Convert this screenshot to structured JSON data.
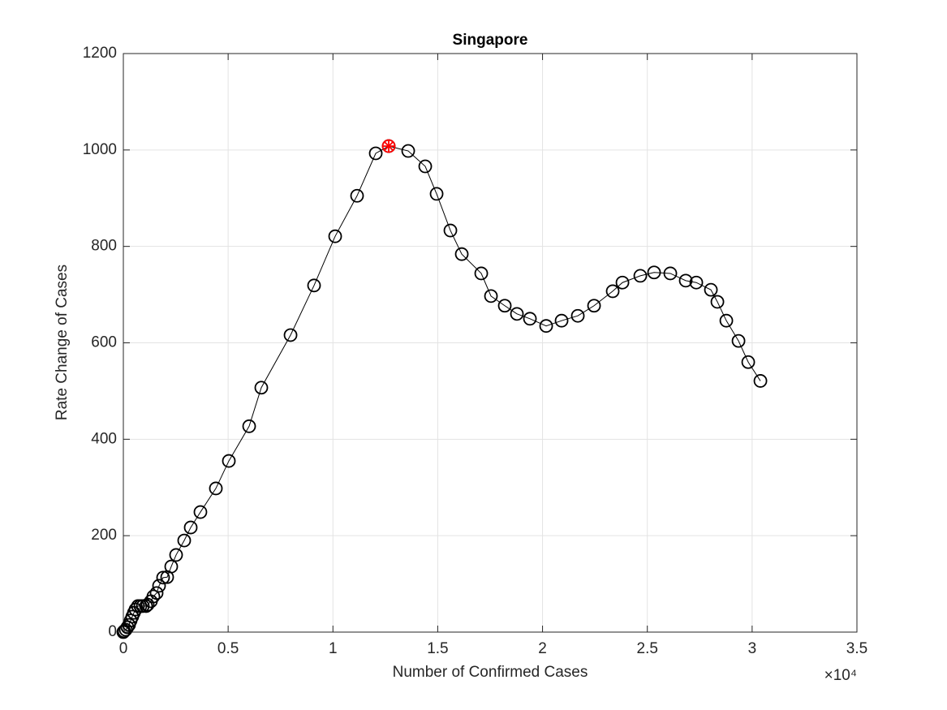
{
  "chart_data": {
    "type": "line",
    "title": "Singapore",
    "x_label": "Number of Confirmed Cases",
    "y_label": "Rate Change of Cases",
    "x_multiplier": "×10⁴",
    "x": [
      0,
      39,
      116,
      194,
      271,
      348,
      426,
      503,
      581,
      697,
      813,
      929,
      1084,
      1162,
      1316,
      1433,
      1588,
      1704,
      1897,
      2091,
      2285,
      2517,
      2904,
      3214,
      3678,
      4414,
      5034,
      6002,
      6582,
      7977,
      9099,
      10106,
      11151,
      12042,
      12661,
      13591,
      14404,
      14946,
      15604,
      16146,
      17076,
      17540,
      18198,
      18779,
      19399,
      20173,
      20909,
      21683,
      22458,
      23348,
      23813,
      24665,
      25323,
      26097,
      26832,
      27336,
      28033,
      28343,
      28769,
      29350,
      29814,
      30395
    ],
    "values": [
      0,
      2,
      5,
      10,
      15,
      24,
      32,
      40,
      47,
      54,
      54,
      54,
      54,
      57,
      64,
      74,
      81,
      96,
      113,
      114,
      136,
      160,
      190,
      217,
      249,
      298,
      355,
      427,
      507,
      616,
      719,
      821,
      905,
      993,
      1008,
      998,
      966,
      909,
      833,
      784,
      744,
      697,
      677,
      660,
      650,
      635,
      646,
      656,
      677,
      707,
      725,
      739,
      746,
      744,
      729,
      725,
      710,
      685,
      646,
      604,
      560,
      521
    ],
    "color": "#000000",
    "highlight_x": 12661,
    "highlight_y": 1008,
    "highlight_color": "#ff0000",
    "xlim": [
      0,
      35000
    ],
    "xticks": [
      0,
      {
        "value": 5000,
        "label": "0.5"
      },
      {
        "value": 10000,
        "label": "1"
      },
      {
        "value": 15000,
        "label": "1.5"
      },
      {
        "value": 20000,
        "label": "2"
      },
      {
        "value": 25000,
        "label": "2.5"
      },
      {
        "value": 30000,
        "label": "3"
      },
      {
        "value": 35000,
        "label": "3.5"
      }
    ],
    "ylim": [
      0,
      1200
    ],
    "yticks": [
      0,
      200,
      400,
      600,
      800,
      1000,
      1200
    ],
    "grid": true
  }
}
